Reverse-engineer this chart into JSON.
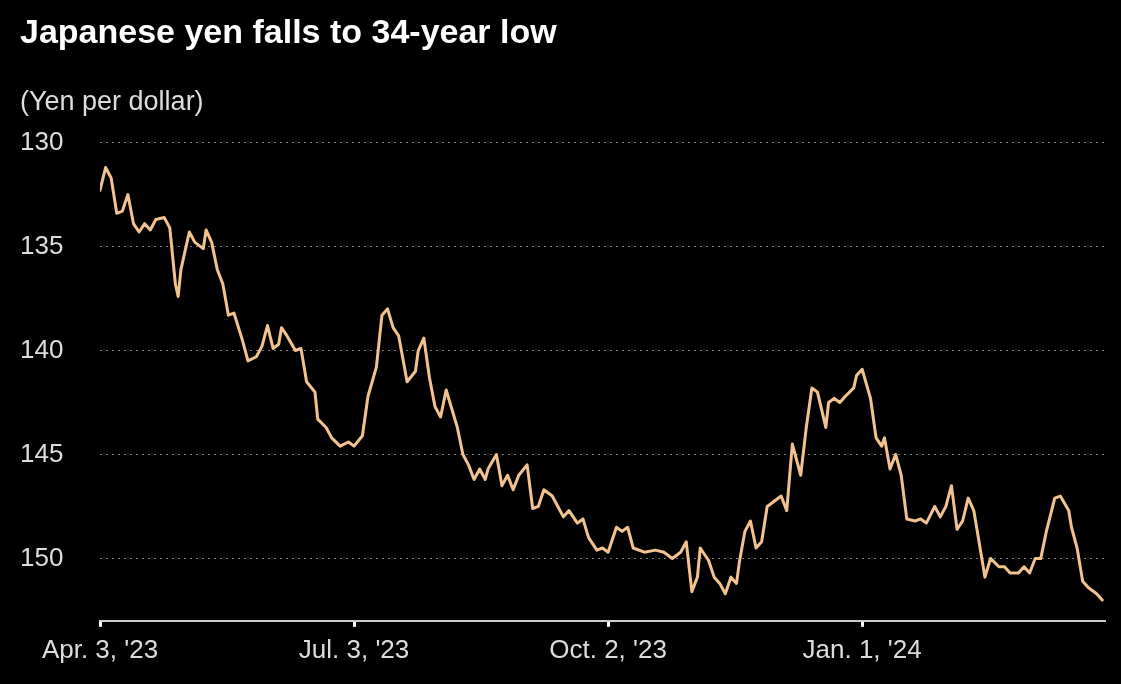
{
  "chart_data": {
    "type": "line",
    "title": "Japanese yen falls to 34-year low",
    "ylabel": "(Yen per dollar)",
    "xlim": [
      "2023-04-03",
      "2024-03-28"
    ],
    "xticks": [
      {
        "value": "2023-04-03",
        "label": "Apr. 3, '23"
      },
      {
        "value": "2023-07-03",
        "label": "Jul. 3, '23"
      },
      {
        "value": "2023-10-02",
        "label": "Oct. 2, '23"
      },
      {
        "value": "2024-01-01",
        "label": "Jan. 1, '24"
      }
    ],
    "ylim": [
      153,
      130
    ],
    "yticks": [
      130,
      135,
      140,
      145,
      150
    ],
    "grid": "y",
    "legend": false,
    "marker": "none",
    "line_style": "solid",
    "series": [
      {
        "color": "#f2c28f",
        "x": [
          "2023-04-03",
          "2023-04-05",
          "2023-04-07",
          "2023-04-09",
          "2023-04-11",
          "2023-04-13",
          "2023-04-15",
          "2023-04-17",
          "2023-04-19",
          "2023-04-21",
          "2023-04-23",
          "2023-04-26",
          "2023-04-28",
          "2023-04-30",
          "2023-05-01",
          "2023-05-02",
          "2023-05-05",
          "2023-05-07",
          "2023-05-10",
          "2023-05-11",
          "2023-05-13",
          "2023-05-15",
          "2023-05-17",
          "2023-05-19",
          "2023-05-21",
          "2023-05-24",
          "2023-05-26",
          "2023-05-29",
          "2023-05-31",
          "2023-06-02",
          "2023-06-04",
          "2023-06-06",
          "2023-06-07",
          "2023-06-09",
          "2023-06-12",
          "2023-06-14",
          "2023-06-16",
          "2023-06-19",
          "2023-06-20",
          "2023-06-23",
          "2023-06-25",
          "2023-06-28",
          "2023-07-01",
          "2023-07-03",
          "2023-07-06",
          "2023-07-08",
          "2023-07-11",
          "2023-07-13",
          "2023-07-15",
          "2023-07-17",
          "2023-07-19",
          "2023-07-22",
          "2023-07-25",
          "2023-07-26",
          "2023-07-28",
          "2023-07-30",
          "2023-08-01",
          "2023-08-03",
          "2023-08-05",
          "2023-08-07",
          "2023-08-09",
          "2023-08-11",
          "2023-08-13",
          "2023-08-15",
          "2023-08-17",
          "2023-08-19",
          "2023-08-20",
          "2023-08-23",
          "2023-08-25",
          "2023-08-27",
          "2023-08-29",
          "2023-08-31",
          "2023-09-03",
          "2023-09-05",
          "2023-09-07",
          "2023-09-09",
          "2023-09-12",
          "2023-09-14",
          "2023-09-16",
          "2023-09-18",
          "2023-09-21",
          "2023-09-23",
          "2023-09-25",
          "2023-09-28",
          "2023-09-30",
          "2023-10-02",
          "2023-10-05",
          "2023-10-07",
          "2023-10-09",
          "2023-10-11",
          "2023-10-15",
          "2023-10-19",
          "2023-10-22",
          "2023-10-25",
          "2023-10-28",
          "2023-10-30",
          "2023-11-01",
          "2023-11-03",
          "2023-11-04",
          "2023-11-07",
          "2023-11-09",
          "2023-11-11",
          "2023-11-13",
          "2023-11-15",
          "2023-11-17",
          "2023-11-18",
          "2023-11-20",
          "2023-11-22",
          "2023-11-24",
          "2023-11-26",
          "2023-11-28",
          "2023-12-01",
          "2023-12-03",
          "2023-12-05",
          "2023-12-07",
          "2023-12-10",
          "2023-12-12",
          "2023-12-14",
          "2023-12-16",
          "2023-12-19",
          "2023-12-20",
          "2023-12-22",
          "2023-12-24",
          "2023-12-26",
          "2023-12-29",
          "2023-12-30",
          "2024-01-01",
          "2024-01-04",
          "2024-01-06",
          "2024-01-08",
          "2024-01-09",
          "2024-01-11",
          "2024-01-13",
          "2024-01-15",
          "2024-01-17",
          "2024-01-20",
          "2024-01-22",
          "2024-01-24",
          "2024-01-27",
          "2024-01-29",
          "2024-01-31",
          "2024-02-02",
          "2024-02-04",
          "2024-02-06",
          "2024-02-08",
          "2024-02-10",
          "2024-02-12",
          "2024-02-14",
          "2024-02-16",
          "2024-02-19",
          "2024-02-21",
          "2024-02-23",
          "2024-02-26",
          "2024-02-28",
          "2024-03-01",
          "2024-03-03",
          "2024-03-05",
          "2024-03-07",
          "2024-03-10",
          "2024-03-12",
          "2024-03-15",
          "2024-03-16",
          "2024-03-18",
          "2024-03-20",
          "2024-03-22",
          "2024-03-25",
          "2024-03-27"
        ],
        "values": [
          132.3,
          131.2,
          131.7,
          133.4,
          133.3,
          132.5,
          133.9,
          134.3,
          133.9,
          134.2,
          133.7,
          133.6,
          134.1,
          136.8,
          137.4,
          136.1,
          134.3,
          134.8,
          135.1,
          134.2,
          134.8,
          136.1,
          136.8,
          138.3,
          138.2,
          139.5,
          140.5,
          140.3,
          139.8,
          138.8,
          139.9,
          139.7,
          138.9,
          139.3,
          140.0,
          139.9,
          141.5,
          142.0,
          143.3,
          143.7,
          144.2,
          144.6,
          144.4,
          144.6,
          144.1,
          142.2,
          140.8,
          138.3,
          138.0,
          138.9,
          139.3,
          141.5,
          141.0,
          140.0,
          139.4,
          141.3,
          142.7,
          143.2,
          141.9,
          142.8,
          143.7,
          145.0,
          145.5,
          146.2,
          145.7,
          146.2,
          145.7,
          145.0,
          146.5,
          146.0,
          146.7,
          146.0,
          145.5,
          147.6,
          147.5,
          146.7,
          147.0,
          147.5,
          148.0,
          147.7,
          148.3,
          148.1,
          149.0,
          149.6,
          149.5,
          149.7,
          148.5,
          148.7,
          148.5,
          149.5,
          149.7,
          149.6,
          149.7,
          150.0,
          149.7,
          149.2,
          151.6,
          150.9,
          149.5,
          150.1,
          150.9,
          151.2,
          151.7,
          150.9,
          151.2,
          150.2,
          148.7,
          148.2,
          149.5,
          149.2,
          147.5,
          147.2,
          147.0,
          147.7,
          144.5,
          146.0,
          143.7,
          141.8,
          142.0,
          143.7,
          142.5,
          142.3,
          142.5,
          142.2,
          141.8,
          141.2,
          140.9,
          142.3,
          144.2,
          144.6,
          144.2,
          145.7,
          145.0,
          146.0,
          148.1,
          148.2,
          148.1,
          148.3,
          147.5,
          148.0,
          147.5,
          146.5,
          148.6,
          148.2,
          147.1,
          147.7,
          149.3,
          150.9,
          150.0,
          150.4,
          150.4,
          150.7,
          150.7,
          150.4,
          150.7,
          150.0,
          150.0,
          148.7,
          147.1,
          147.0,
          147.7,
          148.5,
          149.5,
          151.1,
          151.4,
          151.7,
          152.0
        ]
      }
    ]
  }
}
